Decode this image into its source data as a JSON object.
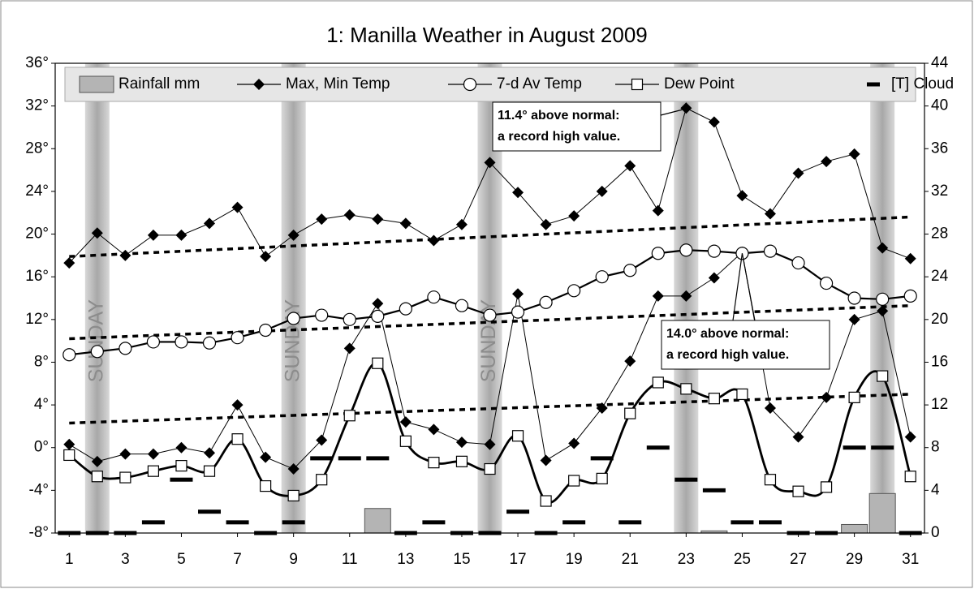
{
  "chart_data": {
    "type": "line",
    "title": "1: Manilla Weather in August 2009",
    "x": [
      1,
      2,
      3,
      4,
      5,
      6,
      7,
      8,
      9,
      10,
      11,
      12,
      13,
      14,
      15,
      16,
      17,
      18,
      19,
      20,
      21,
      22,
      23,
      24,
      25,
      26,
      27,
      28,
      29,
      30,
      31
    ],
    "xlim": [
      0.5,
      31.5
    ],
    "xticks": [
      1,
      3,
      5,
      7,
      9,
      11,
      13,
      15,
      17,
      19,
      21,
      23,
      25,
      27,
      29,
      31
    ],
    "ylim": [
      -8,
      36
    ],
    "yticks": [
      {
        "value": -8,
        "label": "-8°"
      },
      {
        "value": -4,
        "label": "-4°"
      },
      {
        "value": 0,
        "label": "0°"
      },
      {
        "value": 4,
        "label": "4°"
      },
      {
        "value": 8,
        "label": "8°"
      },
      {
        "value": 12,
        "label": "12°"
      },
      {
        "value": 16,
        "label": "16°"
      },
      {
        "value": 20,
        "label": "20°"
      },
      {
        "value": 24,
        "label": "24°"
      },
      {
        "value": 28,
        "label": "28°"
      },
      {
        "value": 32,
        "label": "32°"
      },
      {
        "value": 36,
        "label": "36°"
      }
    ],
    "y2lim": [
      0,
      44
    ],
    "y2ticks": [
      0,
      4,
      8,
      12,
      16,
      20,
      24,
      28,
      32,
      36,
      40,
      44
    ],
    "highlight_days": [
      2,
      9,
      16,
      23,
      30
    ],
    "highlight_labels": [
      "SUNDAY",
      "SUNDAY",
      "SUNDAY",
      null,
      null
    ],
    "series": [
      {
        "name": "Rainfall mm",
        "kind": "bar",
        "axis": "y2",
        "color": "#b4b4b4",
        "values": [
          0,
          0,
          0,
          0,
          0,
          0,
          0,
          0,
          0,
          0,
          0,
          2.3,
          0,
          0,
          0,
          0,
          0,
          0,
          0,
          0,
          0,
          0,
          0,
          0.2,
          0,
          0,
          0,
          0,
          0.8,
          3.7,
          0
        ]
      },
      {
        "name": "Max, Min Temp",
        "kind": "line",
        "marker": "diamond",
        "color": "#000000",
        "values": [
          17.3,
          20.1,
          18.0,
          19.9,
          19.9,
          21.0,
          22.5,
          17.9,
          19.9,
          21.4,
          21.8,
          21.4,
          21.0,
          19.4,
          20.9,
          26.7,
          23.9,
          20.9,
          21.7,
          24.0,
          26.4,
          22.2,
          31.8,
          30.5,
          23.6,
          21.9,
          25.7,
          26.8,
          27.5,
          18.7,
          17.7
        ]
      },
      {
        "kind": "line",
        "marker": "diamond",
        "color": "#000000",
        "values": [
          0.3,
          -1.3,
          -0.6,
          -0.6,
          0.0,
          -0.5,
          4.0,
          -0.9,
          -2.0,
          0.7,
          9.3,
          13.5,
          2.4,
          1.7,
          0.5,
          0.3,
          14.4,
          -1.2,
          0.4,
          3.7,
          8.1,
          14.2,
          14.2,
          15.9,
          18.3,
          3.7,
          1.0,
          4.7,
          12.0,
          12.8,
          1.0
        ]
      },
      {
        "name": "7-d Av Temp",
        "kind": "line",
        "marker": "circle",
        "color": "#000000",
        "values": [
          8.7,
          9.0,
          9.3,
          9.9,
          9.9,
          9.8,
          10.3,
          11.0,
          12.1,
          12.4,
          12.0,
          12.3,
          13.0,
          14.1,
          13.3,
          12.4,
          12.7,
          13.6,
          14.7,
          16.0,
          16.6,
          18.2,
          18.5,
          18.4,
          18.2,
          18.4,
          17.3,
          15.4,
          14.0,
          13.9,
          14.2
        ]
      },
      {
        "name": "Dew Point",
        "kind": "smooth",
        "marker": "square",
        "color": "#000000",
        "values": [
          -0.7,
          -2.7,
          -2.8,
          -2.2,
          -1.7,
          -2.2,
          0.8,
          -3.6,
          -4.5,
          -3.0,
          3.0,
          7.9,
          0.6,
          -1.4,
          -1.3,
          -2.0,
          1.1,
          -5.0,
          -3.1,
          -2.9,
          3.2,
          6.1,
          5.5,
          4.6,
          5.0,
          -3.0,
          -4.1,
          -3.7,
          4.7,
          6.7,
          -2.7
        ]
      },
      {
        "name": "[T] Cloud",
        "kind": "dash",
        "axis": "y2",
        "color": "#000000",
        "values": [
          0,
          0,
          0,
          1,
          5,
          2,
          1,
          0,
          1,
          7,
          7,
          7,
          0,
          1,
          0,
          0,
          2,
          0,
          1,
          7,
          1,
          8,
          5,
          4,
          1,
          1,
          0,
          0,
          8,
          8,
          0
        ]
      }
    ],
    "normal_lines": [
      {
        "x": [
          1,
          31
        ],
        "values": [
          17.9,
          21.6
        ]
      },
      {
        "x": [
          1,
          31
        ],
        "values": [
          10.2,
          13.3
        ]
      },
      {
        "x": [
          1,
          31
        ],
        "values": [
          2.3,
          5.0
        ]
      }
    ],
    "annotations": [
      {
        "lines": [
          "11.4° above normal:",
          "a record high value."
        ]
      },
      {
        "lines": [
          "14.0° above normal:",
          "a record high value."
        ]
      }
    ]
  }
}
